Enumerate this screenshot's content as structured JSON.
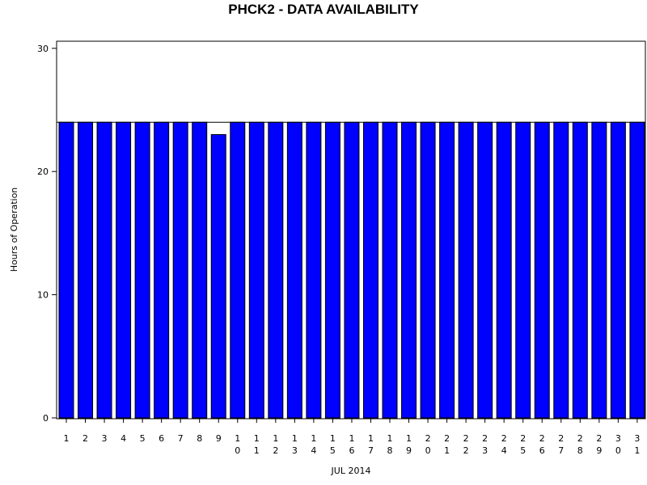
{
  "chart_data": {
    "type": "bar",
    "title": "PHCK2 - DATA AVAILABILITY",
    "xlabel": "JUL 2014",
    "ylabel": "Hours of Operation",
    "ylim": [
      0,
      30
    ],
    "yticks": [
      0,
      10,
      20,
      30
    ],
    "reference_line": 24,
    "grid": false,
    "legend": "none",
    "categories": [
      "1",
      "2",
      "3",
      "4",
      "5",
      "6",
      "7",
      "8",
      "9",
      "10",
      "11",
      "12",
      "13",
      "14",
      "15",
      "16",
      "17",
      "18",
      "19",
      "20",
      "21",
      "22",
      "23",
      "24",
      "25",
      "26",
      "27",
      "28",
      "29",
      "30",
      "31"
    ],
    "series": [
      {
        "color": "#0000ff",
        "values": [
          24,
          24,
          24,
          24,
          24,
          24,
          24,
          24,
          23,
          24,
          24,
          24,
          24,
          24,
          24,
          24,
          24,
          24,
          24,
          24,
          24,
          24,
          24,
          24,
          24,
          24,
          24,
          24,
          24,
          24,
          24
        ]
      }
    ]
  }
}
